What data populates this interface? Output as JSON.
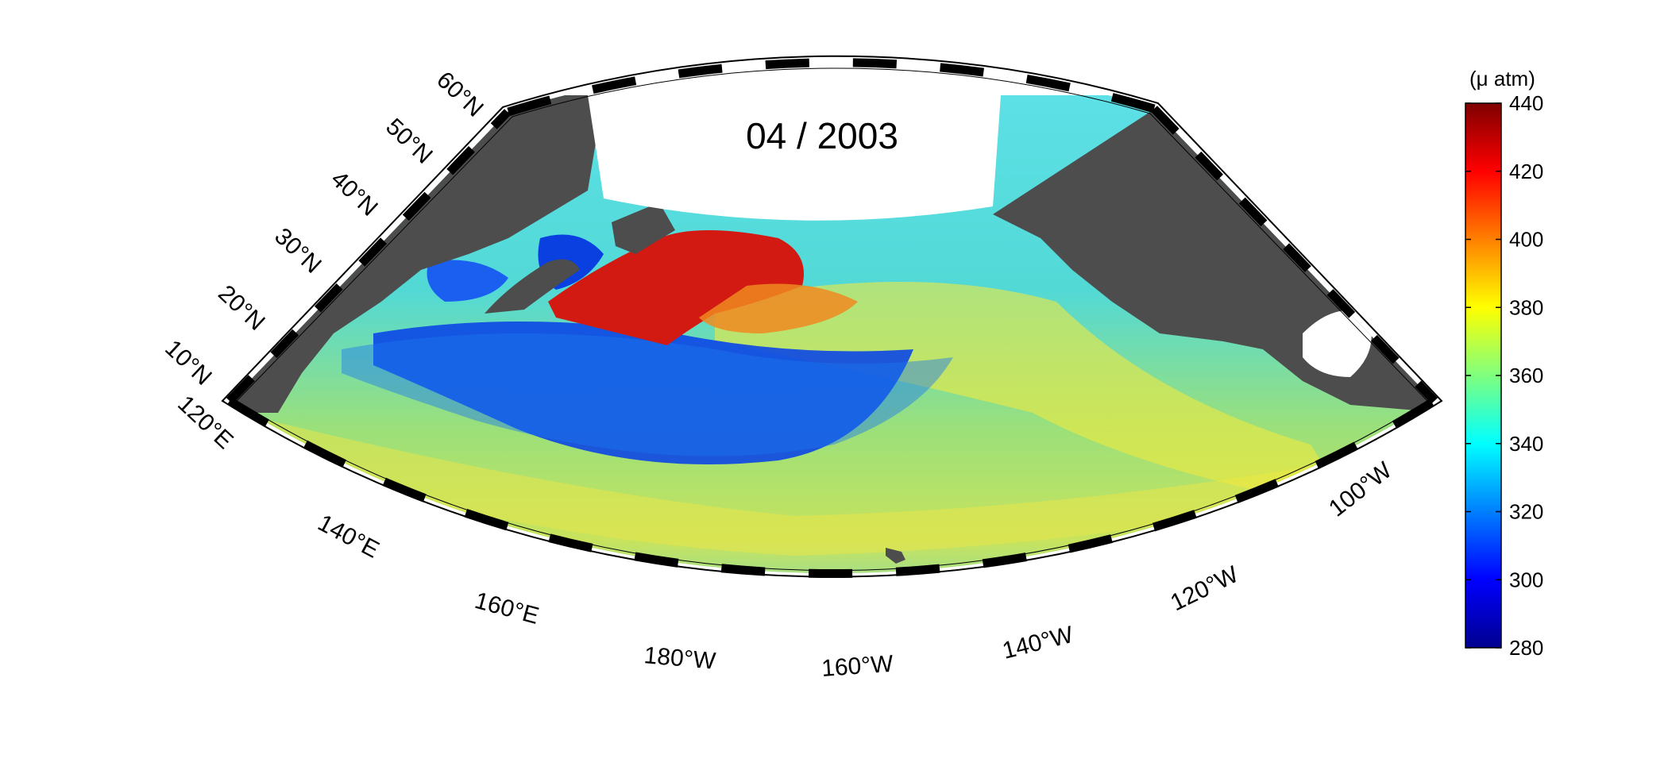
{
  "title": "04 / 2003",
  "colorbar": {
    "unit": "(μ atm)",
    "ticks": [
      "440",
      "420",
      "400",
      "380",
      "360",
      "340",
      "320",
      "300",
      "280"
    ],
    "min": 280,
    "max": 440
  },
  "lat_labels": [
    "60°N",
    "50°N",
    "40°N",
    "30°N",
    "20°N",
    "10°N"
  ],
  "lon_labels": [
    "120°E",
    "140°E",
    "160°E",
    "180°W",
    "160°W",
    "140°W",
    "120°W",
    "100°W"
  ],
  "colors": {
    "land": "#4d4d4d",
    "ocean_mid": "#33d6d6",
    "ocean_low": "#0a3fe0",
    "ocean_high": "#d01c10",
    "ocean_warm": "#f2e83a"
  }
}
